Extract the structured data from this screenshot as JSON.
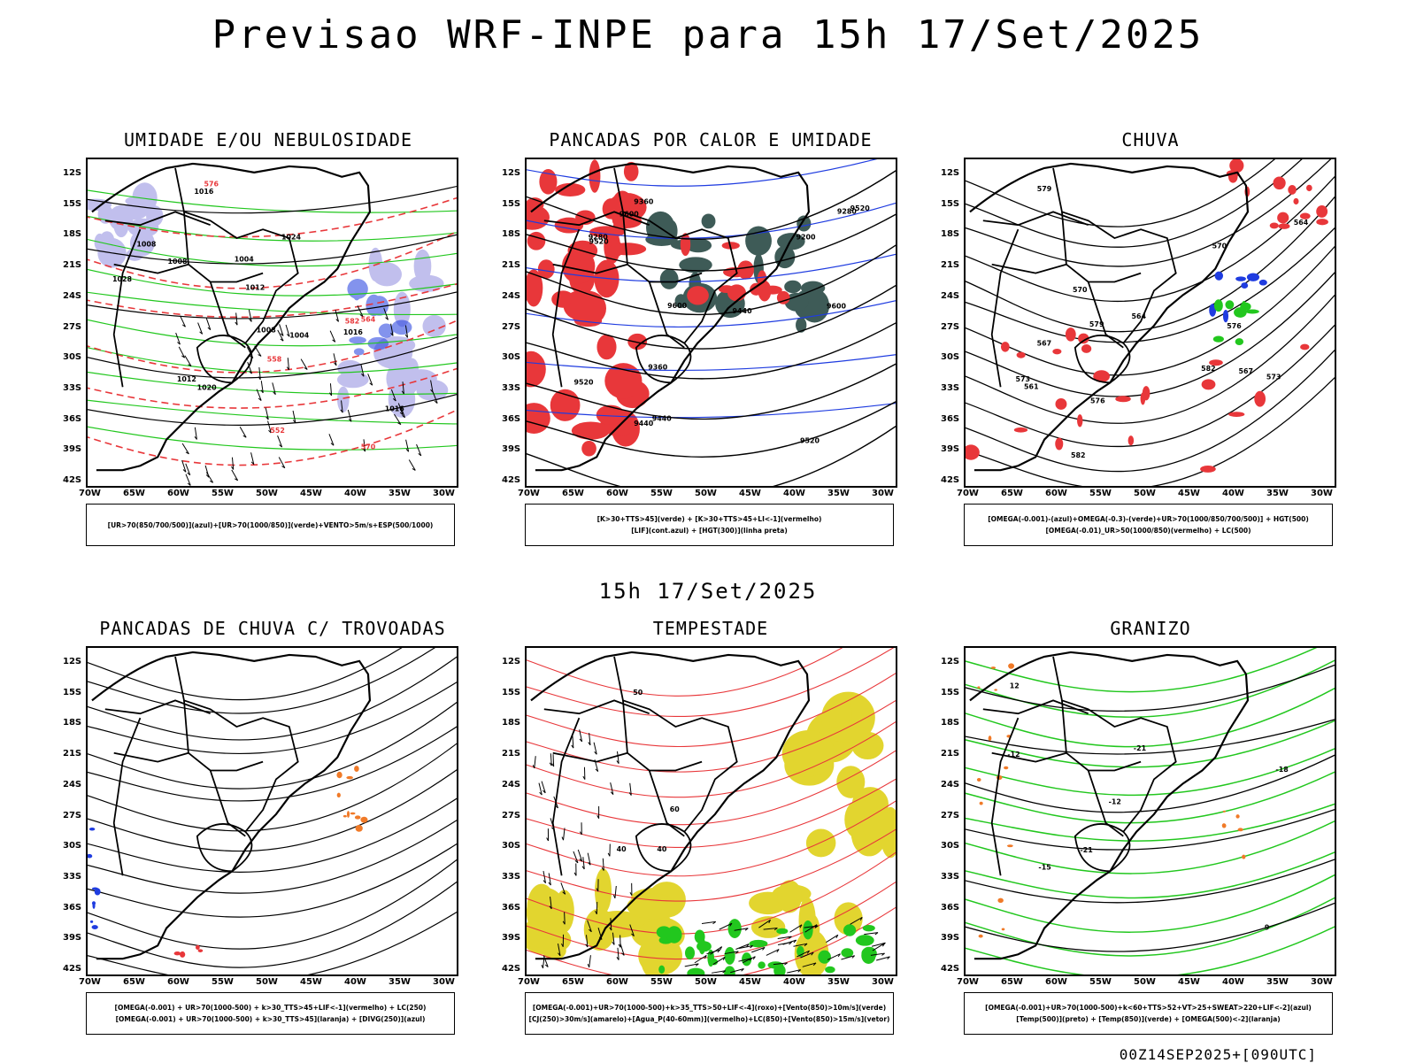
{
  "main_title": "Previsao WRF-INPE  para 15h 17/Set/2025",
  "mid_title": "15h 17/Set/2025",
  "footer": "00Z14SEP2025+[090UTC]",
  "lat_labels": [
    "12S",
    "15S",
    "18S",
    "21S",
    "24S",
    "27S",
    "30S",
    "33S",
    "36S",
    "39S",
    "42S"
  ],
  "lon_labels": [
    "70W",
    "65W",
    "60W",
    "55W",
    "50W",
    "45W",
    "40W",
    "35W",
    "30W"
  ],
  "panels": [
    {
      "title": "UMIDADE E/OU NEBULOSIDADE",
      "legend": [
        "[UR>70(850/700/500)](azul)+[UR>70(1000/850)](verde)+VENTO>5m/s+ESP(500/1000)"
      ],
      "labels": [
        "1008",
        "1008",
        "1012",
        "1016",
        "1020",
        "1024",
        "1028",
        "1004",
        "1016",
        "1016",
        "576",
        "582",
        "570",
        "564",
        "558",
        "552",
        "1004",
        "1008",
        "1012"
      ]
    },
    {
      "title": "PANCADAS POR CALOR E UMIDADE",
      "legend": [
        "[K>30+TTS>45](verde) + [K>30+TTS>45+LI<-1](vermelho)",
        "[LIF](cont.azul) + [HGT(300)](linha preta)"
      ],
      "labels": [
        "9600",
        "9600",
        "9600",
        "9520",
        "9520",
        "9520",
        "9440",
        "9440",
        "9360",
        "9280",
        "9200",
        "9360",
        "9280",
        "9520",
        "9440"
      ]
    },
    {
      "title": "CHUVA",
      "legend": [
        "[OMEGA(-0.001)-(azul)+OMEGA(-0.3)-(verde)+UR>70(1000/850/700/500)] + HGT(500)",
        "[OMEGA(-0.01)_UR>50(1000/850)(vermelho) + LC(500)"
      ],
      "labels": [
        "582",
        "582",
        "579",
        "576",
        "573",
        "570",
        "567",
        "564",
        "576",
        "573",
        "570",
        "567",
        "564",
        "561",
        "579"
      ]
    },
    {
      "title": "PANCADAS DE CHUVA C/ TROVOADAS",
      "legend": [
        "[OMEGA(-0.001) + UR>70(1000-500) + k>30_TTS>45+LIF<-1](vermelho) + LC(250)",
        "[OMEGA(-0.001) + UR>70(1000-500) + k>30_TTS>45](laranja) + [DIVG(250)](azul)"
      ],
      "labels": []
    },
    {
      "title": "TEMPESTADE",
      "legend": [
        "[OMEGA(-0.001)+UR>70(1000-500)+k>35_TTS>50+LIF<-4](roxo)+[Vento(850)>10m/s](verde)",
        "[CJ(250)>30m/s](amarelo)+[Agua_P(40-60mm)](vermelho)+LC(850)+[Vento(850)>15m/s](vetor)"
      ],
      "labels": [
        "40",
        "50",
        "40",
        "60"
      ]
    },
    {
      "title": "GRANIZO",
      "legend": [
        "[OMEGA(-0.001)+UR>70(1000-500)+k<60+TTS>52+VT>25+SWEAT>220+LIF<-2](azul)",
        "[Temp(500)](preto) + [Temp(850)](verde) + [OMEGA(500)<-2](laranja)"
      ],
      "labels": [
        "-12",
        "-12",
        "-15",
        "-18",
        "-21",
        "-21",
        "9",
        "12"
      ]
    }
  ],
  "colors": {
    "red": "#e8373a",
    "green": "#22c71e",
    "blue": "#1f3ce0",
    "lavender": "#b7b4ea",
    "yellow": "#e2d52f",
    "teal": "#2a4a45",
    "orange": "#f07a28",
    "dark": "#000000"
  }
}
